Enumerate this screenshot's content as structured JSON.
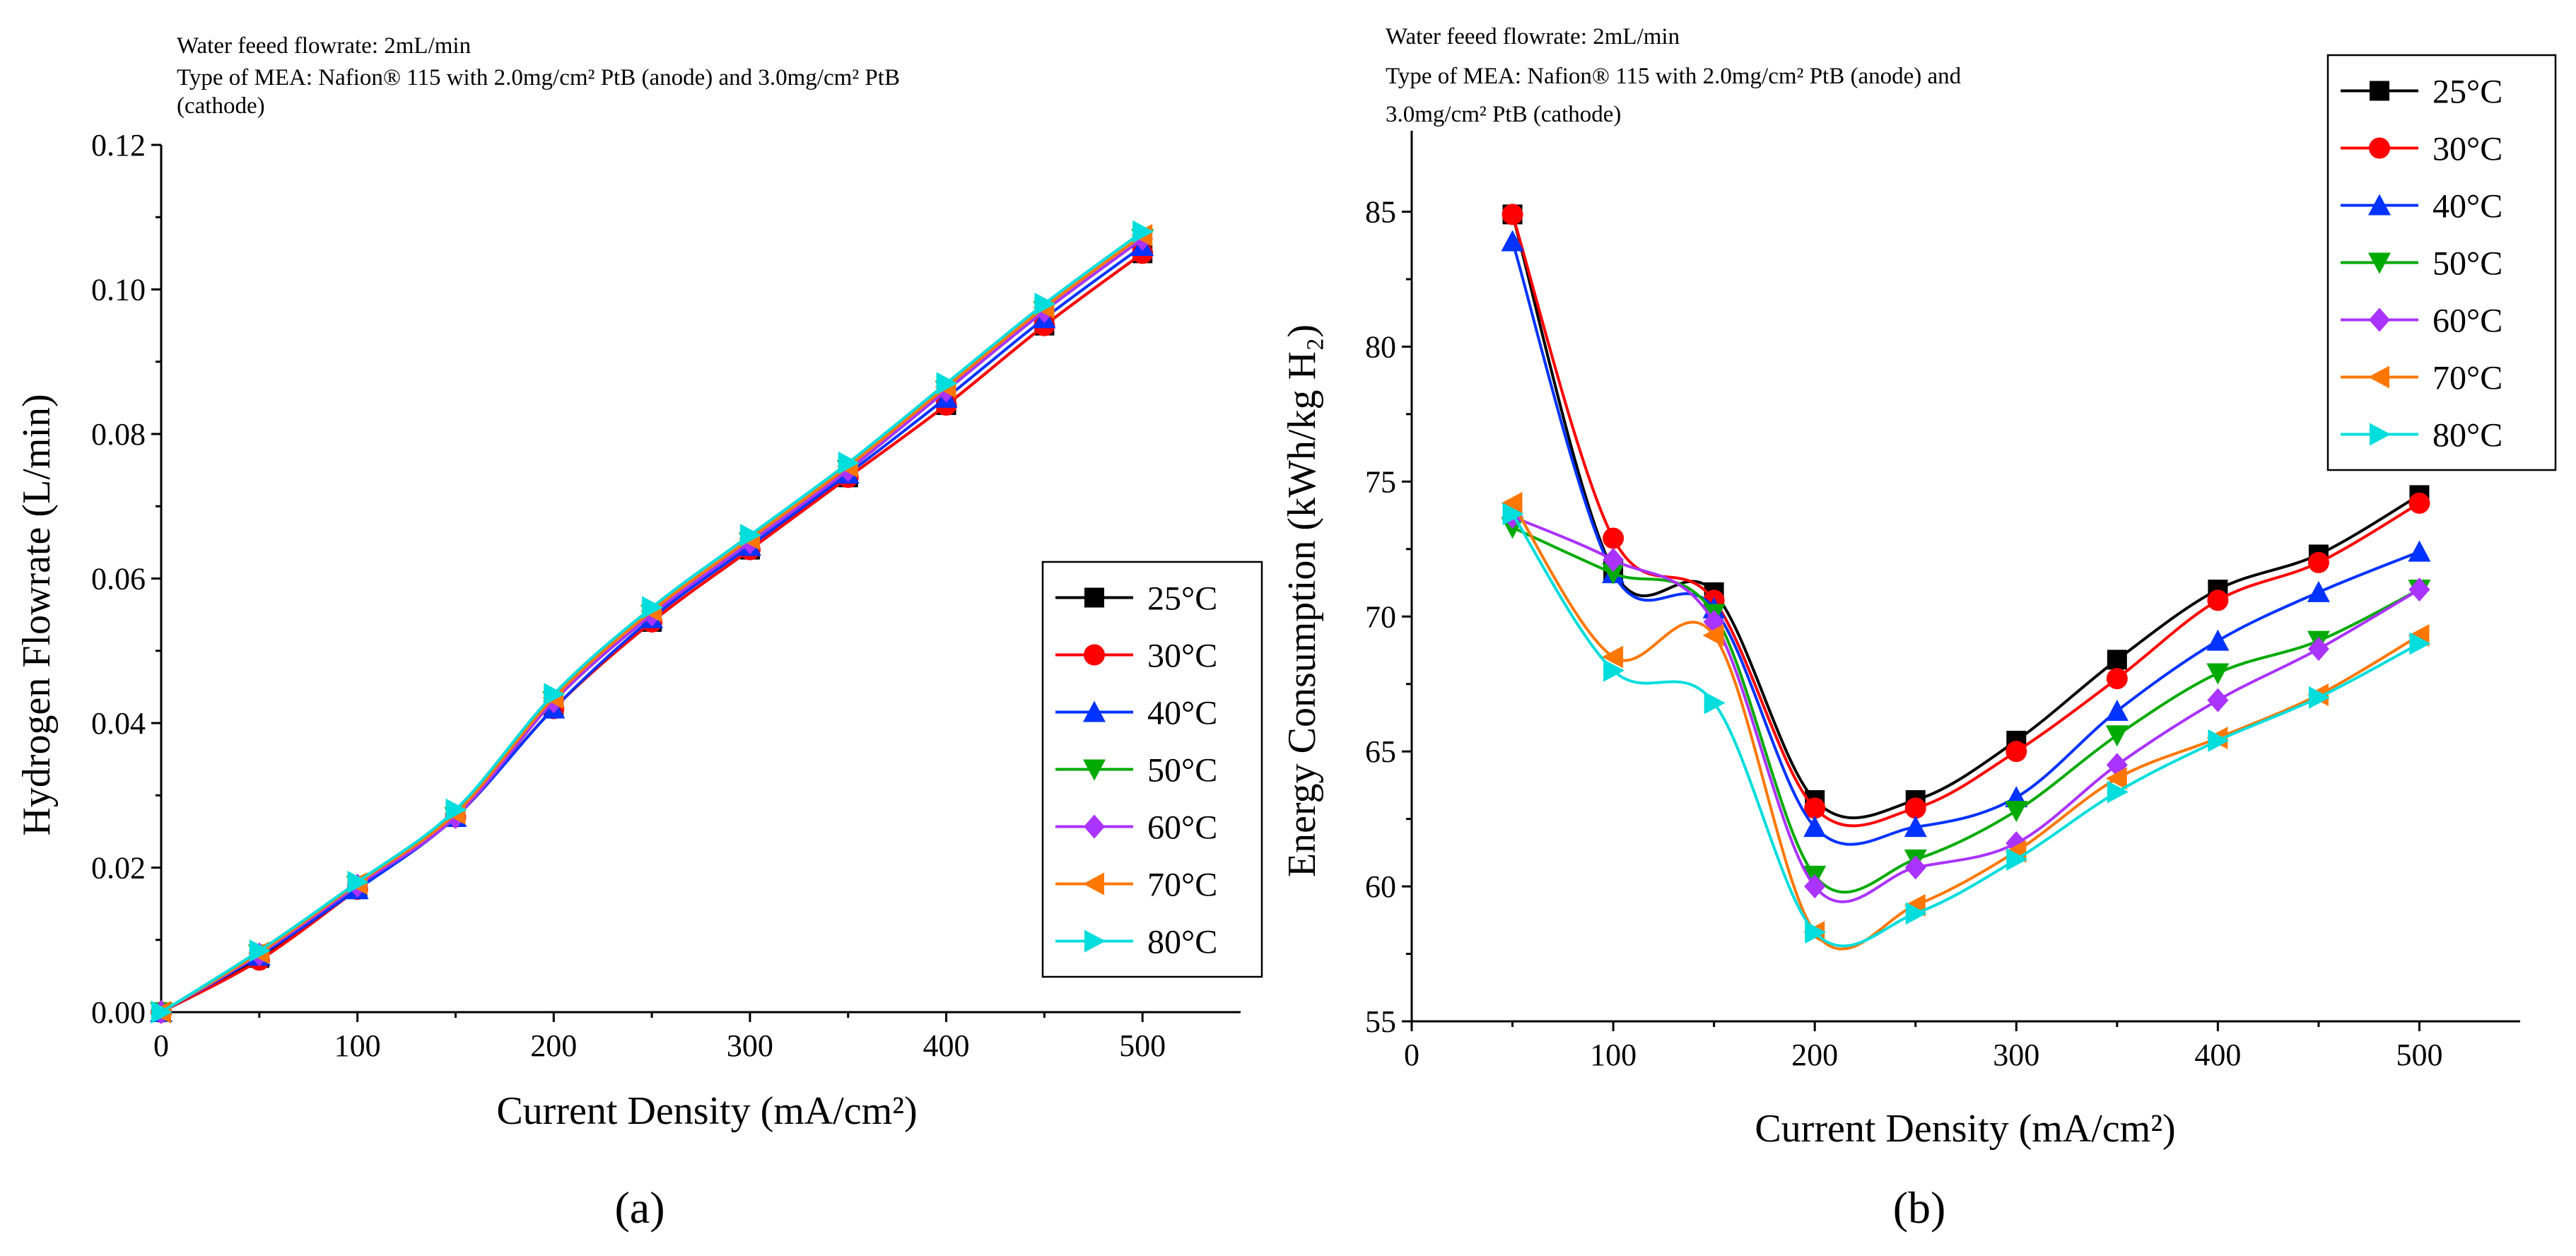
{
  "panels": [
    {
      "id": "a",
      "panel_label": "(a)",
      "notes": [
        "Water feeed flowrate: 2mL/min",
        "Type of MEA: Nafion® 115 with 2.0mg/cm² PtB (anode) and 3.0mg/cm² PtB",
        "(cathode)"
      ],
      "chart_data": {
        "type": "line",
        "title": "",
        "xlabel": "Current Density (mA/cm²)",
        "ylabel": "Hydrogen Flowrate (L/min)",
        "xlim": [
          0,
          550
        ],
        "ylim": [
          0,
          0.12
        ],
        "xticks": [
          0,
          100,
          200,
          300,
          400,
          500
        ],
        "xtick_labels": [
          "0",
          "100",
          "200",
          "300",
          "400",
          "500"
        ],
        "yticks": [
          0,
          0.02,
          0.04,
          0.06,
          0.08,
          0.1,
          0.12
        ],
        "ytick_labels": [
          "0.00",
          "0.02",
          "0.04",
          "0.06",
          "0.08",
          "0.10",
          "0.12"
        ],
        "legend_position": "center-right",
        "x": [
          0,
          50,
          100,
          150,
          200,
          250,
          300,
          350,
          400,
          450,
          500
        ],
        "series": [
          {
            "name": "25°C",
            "color": "#000000",
            "marker": "square",
            "values": [
              0,
              0.0075,
              0.017,
              0.027,
              0.042,
              0.054,
              0.064,
              0.074,
              0.084,
              0.095,
              0.105
            ]
          },
          {
            "name": "30°C",
            "color": "#ff0000",
            "marker": "circle",
            "values": [
              0,
              0.0072,
              0.017,
              0.027,
              0.042,
              0.054,
              0.064,
              0.074,
              0.084,
              0.095,
              0.105
            ]
          },
          {
            "name": "40°C",
            "color": "#0033ff",
            "marker": "triangle-up",
            "values": [
              0,
              0.0078,
              0.017,
              0.027,
              0.042,
              0.0545,
              0.0645,
              0.0745,
              0.085,
              0.096,
              0.106
            ]
          },
          {
            "name": "50°C",
            "color": "#00aa00",
            "marker": "triangle-down",
            "values": [
              0,
              0.008,
              0.0175,
              0.027,
              0.043,
              0.055,
              0.065,
              0.075,
              0.086,
              0.097,
              0.107
            ]
          },
          {
            "name": "60°C",
            "color": "#aa33ff",
            "marker": "diamond",
            "values": [
              0,
              0.008,
              0.0175,
              0.027,
              0.043,
              0.055,
              0.065,
              0.075,
              0.086,
              0.097,
              0.107
            ]
          },
          {
            "name": "70°C",
            "color": "#ff7700",
            "marker": "triangle-left",
            "values": [
              0,
              0.0082,
              0.0178,
              0.0275,
              0.0435,
              0.0555,
              0.0655,
              0.0755,
              0.0865,
              0.0975,
              0.1075
            ]
          },
          {
            "name": "80°C",
            "color": "#00dddd",
            "marker": "triangle-right",
            "values": [
              0,
              0.0085,
              0.018,
              0.028,
              0.044,
              0.056,
              0.066,
              0.076,
              0.087,
              0.098,
              0.108
            ]
          }
        ]
      }
    },
    {
      "id": "b",
      "panel_label": "(b)",
      "notes": [
        "Water feeed flowrate: 2mL/min",
        "Type of MEA: Nafion® 115 with 2.0mg/cm² PtB (anode) and",
        "3.0mg/cm² PtB (cathode)"
      ],
      "chart_data": {
        "type": "line",
        "title": "",
        "xlabel": "Current Density (mA/cm²)",
        "ylabel": "Energy Consumption (kWh/kg H₂)",
        "xlim": [
          0,
          550
        ],
        "ylim": [
          55,
          88
        ],
        "xticks": [
          0,
          100,
          200,
          300,
          400,
          500
        ],
        "xtick_labels": [
          "0",
          "100",
          "200",
          "300",
          "400",
          "500"
        ],
        "yticks": [
          55,
          60,
          65,
          70,
          75,
          80,
          85
        ],
        "ytick_labels": [
          "55",
          "60",
          "65",
          "70",
          "75",
          "80",
          "85"
        ],
        "legend_position": "top-right",
        "x": [
          50,
          100,
          150,
          200,
          250,
          300,
          350,
          400,
          450,
          500
        ],
        "series": [
          {
            "name": "25°C",
            "color": "#000000",
            "marker": "square",
            "values": [
              84.9,
              71.7,
              70.9,
              63.2,
              63.2,
              65.4,
              68.4,
              71.0,
              72.3,
              74.5
            ]
          },
          {
            "name": "30°C",
            "color": "#ff0000",
            "marker": "circle",
            "values": [
              84.9,
              72.9,
              70.6,
              62.9,
              62.9,
              65.0,
              67.7,
              70.6,
              72.0,
              74.2
            ]
          },
          {
            "name": "40°C",
            "color": "#0033ff",
            "marker": "triangle-up",
            "values": [
              83.9,
              71.6,
              70.3,
              62.2,
              62.2,
              63.3,
              66.5,
              69.1,
              70.9,
              72.4
            ]
          },
          {
            "name": "50°C",
            "color": "#00aa00",
            "marker": "triangle-down",
            "values": [
              73.3,
              71.6,
              70.1,
              60.4,
              61.0,
              62.8,
              65.6,
              67.9,
              69.1,
              71.0
            ]
          },
          {
            "name": "60°C",
            "color": "#aa33ff",
            "marker": "diamond",
            "values": [
              73.7,
              72.1,
              69.8,
              60.0,
              60.7,
              61.6,
              64.5,
              66.9,
              68.8,
              71.0
            ]
          },
          {
            "name": "70°C",
            "color": "#ff7700",
            "marker": "triangle-left",
            "values": [
              74.2,
              68.5,
              69.3,
              58.3,
              59.3,
              61.3,
              64.0,
              65.5,
              67.1,
              69.3
            ]
          },
          {
            "name": "80°C",
            "color": "#00dddd",
            "marker": "triangle-right",
            "values": [
              73.8,
              68.0,
              66.8,
              58.3,
              59.0,
              61.0,
              63.5,
              65.4,
              67.0,
              69.0
            ]
          }
        ]
      }
    }
  ]
}
